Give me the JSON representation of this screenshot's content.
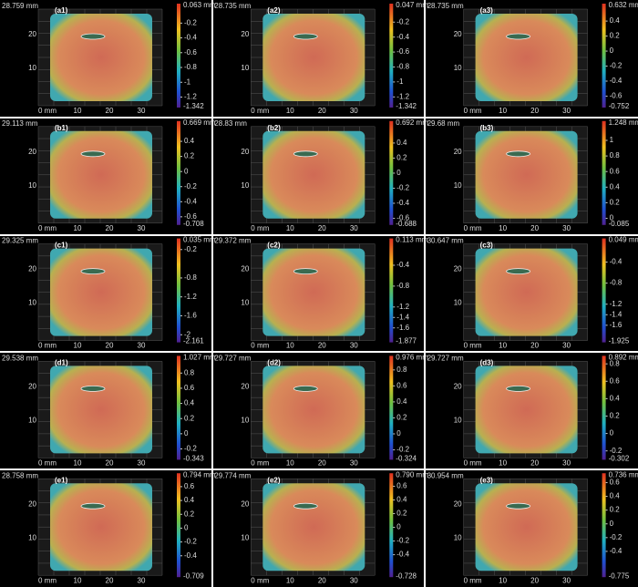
{
  "x_ticks": [
    "0 mm",
    "10",
    "20",
    "30"
  ],
  "y_ticks": [
    "20",
    "10"
  ],
  "panels": [
    {
      "label": "(a1)",
      "height": "28.759 mm",
      "scale_max": "0.063 mm",
      "scale_ticks": [
        -0.2,
        -0.4,
        -0.6,
        -0.8,
        -1,
        -1.2
      ],
      "scale_min": -1.342
    },
    {
      "label": "(a2)",
      "height": "28.735 mm",
      "scale_max": "0.047 mm",
      "scale_ticks": [
        -0.2,
        -0.4,
        -0.6,
        -0.8,
        -1,
        -1.2
      ],
      "scale_min": -1.342
    },
    {
      "label": "(a3)",
      "height": "28.735 mm",
      "scale_max": "0.632 mm",
      "scale_ticks": [
        0.4,
        0.2,
        0,
        -0.2,
        -0.4,
        -0.6
      ],
      "scale_min": -0.752
    },
    {
      "label": "(b1)",
      "height": "29.113 mm",
      "scale_max": "0.669 mm",
      "scale_ticks": [
        0.4,
        0.2,
        0,
        -0.2,
        -0.4,
        -0.6
      ],
      "scale_min": -0.708
    },
    {
      "label": "(b2)",
      "height": "28.83 mm",
      "scale_max": "0.692 mm",
      "scale_ticks": [
        0.4,
        0.2,
        0,
        -0.2,
        -0.4,
        -0.6
      ],
      "scale_min": -0.688
    },
    {
      "label": "(b3)",
      "height": "29.68 mm",
      "scale_max": "1.248 mm",
      "scale_ticks": [
        1,
        0.8,
        0.6,
        0.4,
        0.2,
        0
      ],
      "scale_min": -0.085
    },
    {
      "label": "(c1)",
      "height": "29.325 mm",
      "scale_max": "0.035 mm",
      "scale_ticks": [
        -0.2,
        -0.8,
        -1.2,
        -1.6,
        -2
      ],
      "scale_min": -2.161
    },
    {
      "label": "(c2)",
      "height": "29.372 mm",
      "scale_max": "0.113 mm",
      "scale_ticks": [
        -0.4,
        -0.8,
        -1.2,
        -1.4,
        -1.6
      ],
      "scale_min": -1.877
    },
    {
      "label": "(c3)",
      "height": "30.647 mm",
      "scale_max": "0.049 mm",
      "scale_ticks": [
        -0.4,
        -0.8,
        -1.2,
        -1.4,
        -1.6
      ],
      "scale_min": -1.925
    },
    {
      "label": "(d1)",
      "height": "29.538 mm",
      "scale_max": "1.027 mm",
      "scale_ticks": [
        0.8,
        0.6,
        0.4,
        0.2,
        0,
        -0.2
      ],
      "scale_min": -0.343
    },
    {
      "label": "(d2)",
      "height": "29.727 mm",
      "scale_max": "0.976 mm",
      "scale_ticks": [
        0.8,
        0.6,
        0.4,
        0.2,
        0,
        -0.2
      ],
      "scale_min": -0.324
    },
    {
      "label": "(d3)",
      "height": "29.727 mm",
      "scale_max": "0.892 mm",
      "scale_ticks": [
        0.8,
        0.6,
        0.4,
        0.2,
        0,
        -0.2
      ],
      "scale_min": -0.302
    },
    {
      "label": "(e1)",
      "height": "28.758 mm",
      "scale_max": "0.794 mm",
      "scale_ticks": [
        0.6,
        0.4,
        0.2,
        0,
        -0.2,
        -0.4
      ],
      "scale_min": -0.709
    },
    {
      "label": "(e2)",
      "height": "29.774 mm",
      "scale_max": "0.790 mm",
      "scale_ticks": [
        0.6,
        0.4,
        0.2,
        0,
        -0.2,
        -0.4
      ],
      "scale_min": -0.728
    },
    {
      "label": "(e3)",
      "height": "30.954 mm",
      "scale_max": "0.736 mm",
      "scale_ticks": [
        0.6,
        0.4,
        0.2,
        0,
        -0.2,
        -0.4
      ],
      "scale_min": -0.775
    }
  ]
}
